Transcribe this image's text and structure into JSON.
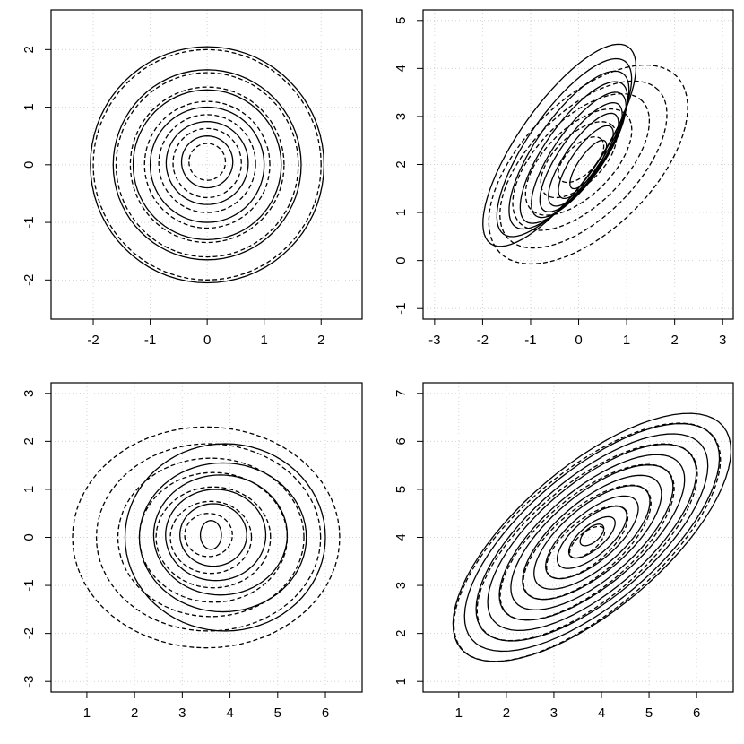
{
  "chart_data": [
    {
      "type": "contour",
      "xlim": [
        -2.74,
        2.72
      ],
      "ylim": [
        -2.68,
        2.69
      ],
      "xticks": [
        -2,
        -1,
        0,
        1,
        2
      ],
      "yticks": [
        -2,
        -1,
        0,
        1,
        2
      ],
      "grid": true,
      "series": [
        {
          "line_style": "solid",
          "color": "#000000",
          "contours": [
            {
              "cx": 0,
              "cy": 0,
              "rx": 2.05,
              "ry": 2.05,
              "angle": 0
            },
            {
              "cx": 0,
              "cy": 0,
              "rx": 1.65,
              "ry": 1.65,
              "angle": 0
            },
            {
              "cx": 0,
              "cy": 0,
              "rx": 1.3,
              "ry": 1.3,
              "angle": 0
            },
            {
              "cx": 0,
              "cy": 0,
              "rx": 1.0,
              "ry": 1.0,
              "angle": 0
            },
            {
              "cx": 0,
              "cy": 0.03,
              "rx": 0.72,
              "ry": 0.72,
              "angle": 0
            },
            {
              "cx": 0,
              "cy": 0.05,
              "rx": 0.45,
              "ry": 0.45,
              "angle": 0
            }
          ]
        },
        {
          "line_style": "dashed",
          "color": "#000000",
          "contours": [
            {
              "cx": 0,
              "cy": 0,
              "rx": 2.0,
              "ry": 2.0,
              "angle": 0
            },
            {
              "cx": 0,
              "cy": 0,
              "rx": 1.6,
              "ry": 1.6,
              "angle": 0
            },
            {
              "cx": 0,
              "cy": 0,
              "rx": 1.35,
              "ry": 1.35,
              "angle": 0
            },
            {
              "cx": 0,
              "cy": 0,
              "rx": 1.1,
              "ry": 1.1,
              "angle": 0
            },
            {
              "cx": 0,
              "cy": 0.02,
              "rx": 0.85,
              "ry": 0.85,
              "angle": 0
            },
            {
              "cx": 0,
              "cy": 0.03,
              "rx": 0.6,
              "ry": 0.6,
              "angle": 0
            },
            {
              "cx": 0,
              "cy": 0.05,
              "rx": 0.32,
              "ry": 0.32,
              "angle": 0
            }
          ]
        }
      ]
    },
    {
      "type": "contour",
      "xlim": [
        -3.24,
        3.22
      ],
      "ylim": [
        -1.22,
        5.22
      ],
      "xticks": [
        -3,
        -2,
        -1,
        0,
        1,
        2,
        3
      ],
      "yticks": [
        -1,
        0,
        1,
        2,
        3,
        4,
        5
      ],
      "grid": true,
      "series": [
        {
          "line_style": "solid",
          "color": "#000000",
          "contours": [
            {
              "cx": -0.4,
              "cy": 2.4,
              "rx": 2.5,
              "ry": 0.85,
              "angle": 55
            },
            {
              "cx": -0.3,
              "cy": 2.35,
              "rx": 2.2,
              "ry": 0.75,
              "angle": 55
            },
            {
              "cx": -0.2,
              "cy": 2.3,
              "rx": 1.95,
              "ry": 0.68,
              "angle": 55
            },
            {
              "cx": -0.1,
              "cy": 2.25,
              "rx": 1.75,
              "ry": 0.6,
              "angle": 55
            },
            {
              "cx": 0,
              "cy": 2.2,
              "rx": 1.55,
              "ry": 0.52,
              "angle": 55
            },
            {
              "cx": 0.05,
              "cy": 2.15,
              "rx": 1.35,
              "ry": 0.45,
              "angle": 55
            },
            {
              "cx": 0.1,
              "cy": 2.1,
              "rx": 1.15,
              "ry": 0.38,
              "angle": 55
            },
            {
              "cx": 0.15,
              "cy": 2.05,
              "rx": 0.9,
              "ry": 0.3,
              "angle": 55
            },
            {
              "cx": 0.2,
              "cy": 2.0,
              "rx": 0.6,
              "ry": 0.2,
              "angle": 55
            }
          ]
        },
        {
          "line_style": "dashed",
          "color": "#000000",
          "contours": [
            {
              "cx": 0.2,
              "cy": 2.0,
              "rx": 2.6,
              "ry": 1.35,
              "angle": 45
            },
            {
              "cx": 0.1,
              "cy": 2.0,
              "rx": 2.2,
              "ry": 1.1,
              "angle": 45
            },
            {
              "cx": 0.05,
              "cy": 2.05,
              "rx": 1.8,
              "ry": 0.9,
              "angle": 45
            },
            {
              "cx": 0,
              "cy": 2.05,
              "rx": 1.4,
              "ry": 0.7,
              "angle": 45
            },
            {
              "cx": 0,
              "cy": 2.1,
              "rx": 1.0,
              "ry": 0.5,
              "angle": 45
            },
            {
              "cx": 0.05,
              "cy": 2.1,
              "rx": 0.6,
              "ry": 0.3,
              "angle": 45
            }
          ]
        }
      ]
    },
    {
      "type": "contour",
      "xlim": [
        0.25,
        6.77
      ],
      "ylim": [
        -3.22,
        3.22
      ],
      "xticks": [
        1,
        2,
        3,
        4,
        5,
        6
      ],
      "yticks": [
        -3,
        -2,
        -1,
        0,
        1,
        2,
        3
      ],
      "grid": true,
      "series": [
        {
          "line_style": "solid",
          "color": "#000000",
          "contours": [
            {
              "cx": 3.9,
              "cy": 0,
              "rx": 2.1,
              "ry": 1.95,
              "angle": 0
            },
            {
              "cx": 3.85,
              "cy": 0,
              "rx": 1.75,
              "ry": 1.55,
              "angle": 0
            },
            {
              "cx": 3.8,
              "cy": 0.05,
              "rx": 1.4,
              "ry": 1.25,
              "angle": 0
            },
            {
              "cx": 3.7,
              "cy": 0.05,
              "rx": 1.05,
              "ry": 0.95,
              "angle": 0
            },
            {
              "cx": 3.65,
              "cy": 0.05,
              "rx": 0.7,
              "ry": 0.65,
              "angle": 0
            },
            {
              "cx": 3.6,
              "cy": 0.05,
              "rx": 0.22,
              "ry": 0.3,
              "angle": 0
            }
          ]
        },
        {
          "line_style": "dashed",
          "color": "#000000",
          "contours": [
            {
              "cx": 3.5,
              "cy": 0,
              "rx": 2.8,
              "ry": 2.3,
              "angle": 0
            },
            {
              "cx": 3.55,
              "cy": 0,
              "rx": 2.35,
              "ry": 1.95,
              "angle": 0
            },
            {
              "cx": 3.6,
              "cy": 0,
              "rx": 1.95,
              "ry": 1.65,
              "angle": 0
            },
            {
              "cx": 3.65,
              "cy": 0,
              "rx": 1.55,
              "ry": 1.35,
              "angle": 0
            },
            {
              "cx": 3.65,
              "cy": 0,
              "rx": 1.2,
              "ry": 1.05,
              "angle": 0
            },
            {
              "cx": 3.6,
              "cy": 0,
              "rx": 0.85,
              "ry": 0.75,
              "angle": 0
            },
            {
              "cx": 3.55,
              "cy": 0.05,
              "rx": 0.5,
              "ry": 0.45,
              "angle": 0
            }
          ]
        }
      ]
    },
    {
      "type": "contour",
      "xlim": [
        0.25,
        6.77
      ],
      "ylim": [
        0.78,
        7.22
      ],
      "xticks": [
        1,
        2,
        3,
        4,
        5,
        6
      ],
      "yticks": [
        1,
        2,
        3,
        4,
        5,
        6,
        7
      ],
      "grid": true,
      "series": [
        {
          "line_style": "solid",
          "color": "#000000",
          "contours": [
            {
              "cx": 3.8,
              "cy": 4.0,
              "rx": 3.6,
              "ry": 1.5,
              "angle": 40
            },
            {
              "cx": 3.8,
              "cy": 4.0,
              "rx": 3.3,
              "ry": 1.38,
              "angle": 40
            },
            {
              "cx": 3.8,
              "cy": 4.0,
              "rx": 3.0,
              "ry": 1.26,
              "angle": 40
            },
            {
              "cx": 3.8,
              "cy": 4.0,
              "rx": 2.7,
              "ry": 1.13,
              "angle": 40
            },
            {
              "cx": 3.8,
              "cy": 4.0,
              "rx": 2.4,
              "ry": 1.0,
              "angle": 40
            },
            {
              "cx": 3.8,
              "cy": 4.0,
              "rx": 2.1,
              "ry": 0.88,
              "angle": 40
            },
            {
              "cx": 3.8,
              "cy": 4.0,
              "rx": 1.8,
              "ry": 0.75,
              "angle": 40
            },
            {
              "cx": 3.8,
              "cy": 4.0,
              "rx": 1.5,
              "ry": 0.63,
              "angle": 40
            },
            {
              "cx": 3.8,
              "cy": 4.0,
              "rx": 1.2,
              "ry": 0.5,
              "angle": 40
            },
            {
              "cx": 3.8,
              "cy": 4.0,
              "rx": 0.9,
              "ry": 0.38,
              "angle": 40
            },
            {
              "cx": 3.8,
              "cy": 4.0,
              "rx": 0.6,
              "ry": 0.25,
              "angle": 40
            },
            {
              "cx": 3.8,
              "cy": 4.05,
              "rx": 0.3,
              "ry": 0.15,
              "angle": 40
            }
          ]
        },
        {
          "line_style": "dashed",
          "color": "#000000",
          "contours": [
            {
              "cx": 3.7,
              "cy": 3.9,
              "rx": 3.45,
              "ry": 1.45,
              "angle": 40
            },
            {
              "cx": 3.7,
              "cy": 3.9,
              "rx": 2.85,
              "ry": 1.2,
              "angle": 40
            },
            {
              "cx": 3.7,
              "cy": 3.9,
              "rx": 2.25,
              "ry": 0.95,
              "angle": 40
            },
            {
              "cx": 3.7,
              "cy": 3.9,
              "rx": 1.65,
              "ry": 0.7,
              "angle": 40
            },
            {
              "cx": 3.7,
              "cy": 3.9,
              "rx": 1.05,
              "ry": 0.45,
              "angle": 40
            },
            {
              "cx": 3.7,
              "cy": 3.9,
              "rx": 0.45,
              "ry": 0.2,
              "angle": 40
            }
          ]
        }
      ]
    }
  ]
}
